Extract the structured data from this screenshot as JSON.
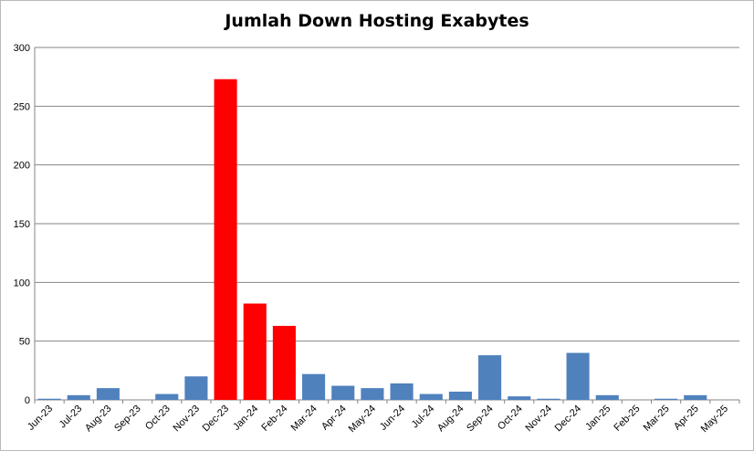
{
  "chart_data": {
    "type": "bar",
    "title": "Jumlah Down Hosting Exabytes",
    "xlabel": "",
    "ylabel": "",
    "ylim": [
      0,
      300
    ],
    "yticks": [
      "0",
      "50",
      "100",
      "150",
      "200",
      "250",
      "300"
    ],
    "grid": true,
    "categories": [
      "Jun-23",
      "Jul-23",
      "Aug-23",
      "Sep-23",
      "Oct-23",
      "Nov-23",
      "Dec-23",
      "Jan-24",
      "Feb-24",
      "Mar-24",
      "Apr-24",
      "May-24",
      "Jun-24",
      "Jul-24",
      "Aug-24",
      "Sep-24",
      "Oct-24",
      "Nov-24",
      "Dec-24",
      "Jan-25",
      "Feb-25",
      "Mar-25",
      "Apr-25",
      "May-25"
    ],
    "values": [
      1,
      4,
      10,
      0,
      5,
      20,
      273,
      82,
      63,
      22,
      12,
      10,
      14,
      5,
      7,
      38,
      3,
      1,
      40,
      4,
      0,
      1,
      4,
      0
    ],
    "highlighted": [
      "Dec-23",
      "Jan-24",
      "Feb-24"
    ],
    "colors": {
      "default": "#4f81bd",
      "highlight": "#ff0000",
      "grid": "#868686",
      "axis": "#868686"
    }
  }
}
